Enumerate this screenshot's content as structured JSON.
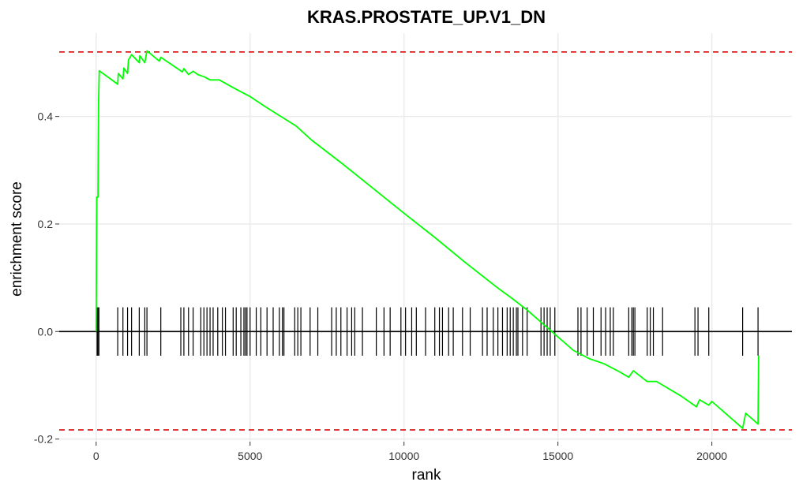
{
  "chart_data": {
    "type": "line",
    "title": "KRAS.PROSTATE_UP.V1_DN",
    "xlabel": "rank",
    "ylabel": "enrichment score",
    "xlim": [
      -1200,
      22600
    ],
    "ylim": [
      -0.205,
      0.555
    ],
    "x_ticks": [
      0,
      5000,
      10000,
      15000,
      20000
    ],
    "x_tick_labels": [
      "0",
      "5000",
      "10000",
      "15000",
      "20000"
    ],
    "y_ticks": [
      -0.2,
      0.0,
      0.2,
      0.4
    ],
    "y_tick_labels": [
      "-0.2",
      "0.0",
      "0.2",
      "0.4"
    ],
    "grid": true,
    "max_es": 0.52,
    "min_es": -0.183,
    "colors": {
      "running_score": "#00ff00",
      "reference_lines": "#e41a1c",
      "hits": "#000000"
    },
    "series": [
      {
        "values": [
          [
            0,
            0.0
          ],
          [
            20,
            0.25
          ],
          [
            60,
            0.25
          ],
          [
            70,
            0.36
          ],
          [
            80,
            0.43
          ],
          [
            100,
            0.485
          ],
          [
            700,
            0.46
          ],
          [
            720,
            0.48
          ],
          [
            870,
            0.47
          ],
          [
            900,
            0.49
          ],
          [
            1020,
            0.48
          ],
          [
            1050,
            0.505
          ],
          [
            1150,
            0.515
          ],
          [
            1400,
            0.5
          ],
          [
            1420,
            0.513
          ],
          [
            1580,
            0.5
          ],
          [
            1650,
            0.522
          ],
          [
            2050,
            0.503
          ],
          [
            2100,
            0.51
          ],
          [
            2800,
            0.483
          ],
          [
            2850,
            0.489
          ],
          [
            3000,
            0.478
          ],
          [
            3150,
            0.484
          ],
          [
            3300,
            0.478
          ],
          [
            3500,
            0.474
          ],
          [
            3700,
            0.468
          ],
          [
            4000,
            0.468
          ],
          [
            4500,
            0.452
          ],
          [
            5000,
            0.437
          ],
          [
            5500,
            0.418
          ],
          [
            6000,
            0.4
          ],
          [
            6500,
            0.382
          ],
          [
            7000,
            0.356
          ],
          [
            8000,
            0.312
          ],
          [
            9000,
            0.266
          ],
          [
            10000,
            0.22
          ],
          [
            11000,
            0.175
          ],
          [
            12000,
            0.128
          ],
          [
            13000,
            0.083
          ],
          [
            13500,
            0.062
          ],
          [
            14000,
            0.04
          ],
          [
            14500,
            0.015
          ],
          [
            15000,
            -0.01
          ],
          [
            15500,
            -0.035
          ],
          [
            16000,
            -0.05
          ],
          [
            16500,
            -0.06
          ],
          [
            17000,
            -0.075
          ],
          [
            17300,
            -0.085
          ],
          [
            17450,
            -0.073
          ],
          [
            17900,
            -0.093
          ],
          [
            18200,
            -0.093
          ],
          [
            18500,
            -0.103
          ],
          [
            19000,
            -0.12
          ],
          [
            19500,
            -0.14
          ],
          [
            19600,
            -0.127
          ],
          [
            19900,
            -0.137
          ],
          [
            20000,
            -0.13
          ],
          [
            20500,
            -0.155
          ],
          [
            21000,
            -0.18
          ],
          [
            21100,
            -0.152
          ],
          [
            21500,
            -0.172
          ],
          [
            21520,
            -0.045
          ]
        ]
      }
    ],
    "hits": [
      30,
      60,
      90,
      700,
      870,
      1020,
      1150,
      1400,
      1580,
      1650,
      2100,
      2750,
      2850,
      3000,
      3150,
      3400,
      3500,
      3600,
      3700,
      3800,
      3950,
      4100,
      4200,
      4450,
      4550,
      4700,
      4800,
      4850,
      4900,
      5000,
      5200,
      5350,
      5550,
      5750,
      5950,
      6050,
      6100,
      6450,
      6550,
      6650,
      6950,
      7200,
      7650,
      7800,
      7950,
      8150,
      8300,
      8400,
      8650,
      9100,
      9350,
      9550,
      9900,
      10050,
      10250,
      10400,
      10700,
      11000,
      11150,
      11250,
      11450,
      11600,
      11900,
      12150,
      12550,
      12700,
      12900,
      13050,
      13200,
      13350,
      13450,
      13550,
      13650,
      13700,
      13850,
      14000,
      14450,
      14550,
      14650,
      14750,
      14900,
      15650,
      15750,
      15950,
      16150,
      16400,
      16550,
      16700,
      16800,
      17300,
      17400,
      17450,
      17500,
      17900,
      18000,
      18100,
      18400,
      19450,
      19550,
      19900,
      21000,
      21500
    ]
  }
}
